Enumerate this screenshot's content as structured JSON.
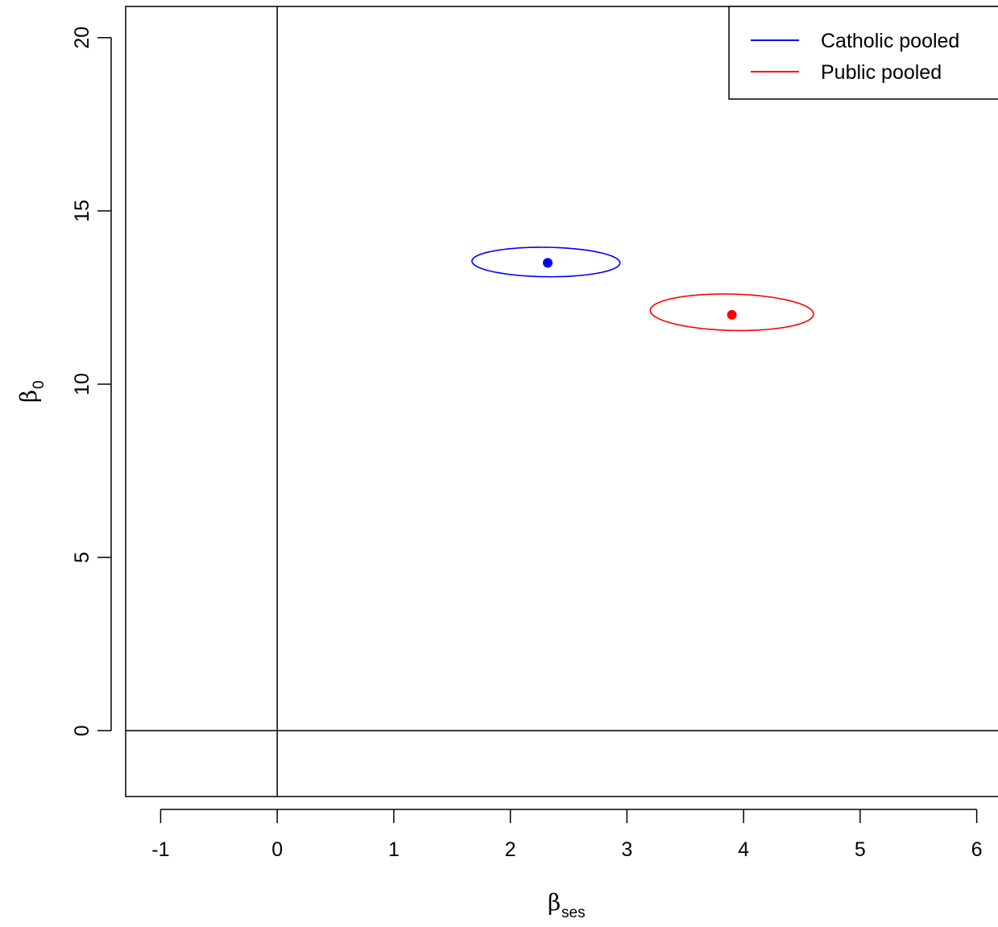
{
  "chart_data": {
    "type": "scatter",
    "xlabel": {
      "symbol": "β",
      "subscript": "ses"
    },
    "ylabel": {
      "symbol": "β",
      "subscript": "0"
    },
    "xlim": [
      -1.3,
      6.3
    ],
    "ylim": [
      -1.9,
      20.9
    ],
    "x_ticks": [
      -1,
      0,
      1,
      2,
      3,
      4,
      5,
      6
    ],
    "y_ticks": [
      0,
      5,
      10,
      15,
      20
    ],
    "reference_lines": {
      "vertical_x": 0,
      "horizontal_y": 0
    },
    "grid": false,
    "legend_position": "top-right",
    "series": [
      {
        "name": "Catholic pooled",
        "color": "#0000ff",
        "point": {
          "x": 2.32,
          "y": 13.5
        },
        "ellipse": {
          "x_min": 1.67,
          "x_max": 2.94,
          "y_min": 13.1,
          "y_max": 13.95,
          "tilt": -0.06
        }
      },
      {
        "name": "Public pooled",
        "color": "#ff0000",
        "point": {
          "x": 3.9,
          "y": 12.0
        },
        "ellipse": {
          "x_min": 3.2,
          "x_max": 4.6,
          "y_min": 11.55,
          "y_max": 12.6,
          "tilt": -0.1
        }
      }
    ]
  }
}
